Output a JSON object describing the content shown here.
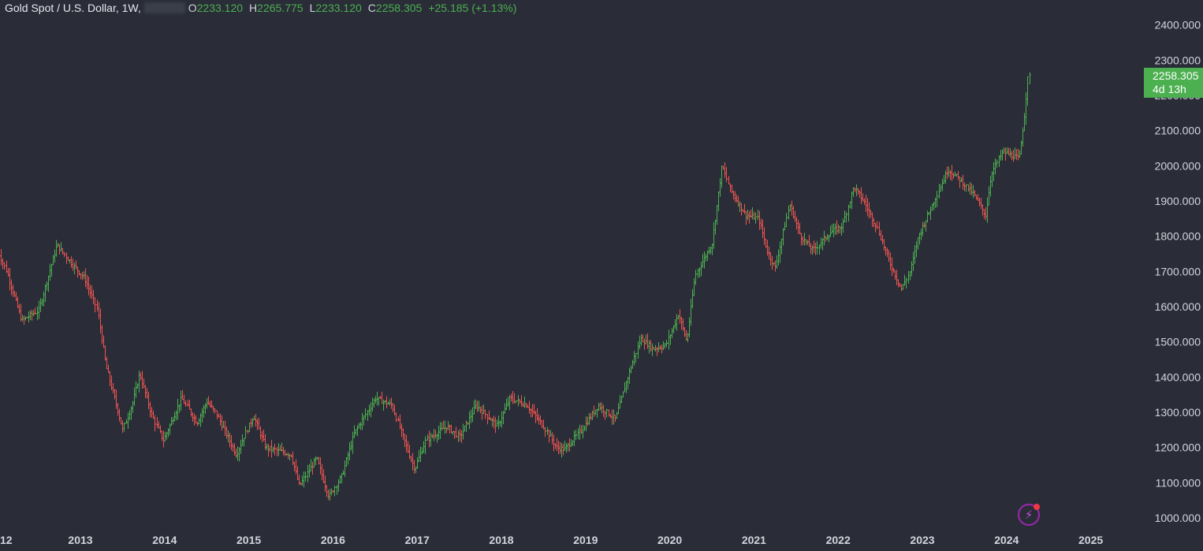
{
  "legend": {
    "symbol": "Gold Spot / U.S. Dollar, 1W,",
    "open_label": "O",
    "open": "2233.120",
    "high_label": "H",
    "high": "2265.775",
    "low_label": "L",
    "low": "2233.120",
    "close_label": "C",
    "close": "2258.305",
    "change": "+25.185 (+1.13%)"
  },
  "price_badge": {
    "price": "2258.305",
    "countdown": "4d 13h"
  },
  "toolbar": {
    "bolt_icon": "lightning-bolt-icon"
  },
  "colors": {
    "up": "#4caf50",
    "down": "#ef5350",
    "background": "#2a2d38",
    "text": "#d1d4dc"
  },
  "chart_data": {
    "type": "bar",
    "subtype": "ohlc-weekly",
    "title": "Gold Spot / U.S. Dollar, 1W,",
    "y_axis": {
      "side": "right",
      "range": [
        980,
        2440
      ],
      "ticks": [
        1000,
        1100,
        1200,
        1300,
        1400,
        1500,
        1600,
        1700,
        1800,
        1900,
        2000,
        2100,
        2200,
        2300,
        2400
      ],
      "tick_labels": [
        "1000.000",
        "1100.000",
        "1200.000",
        "1300.000",
        "1400.000",
        "1500.000",
        "1600.000",
        "1700.000",
        "1800.000",
        "1900.000",
        "2000.000",
        "2100.000",
        "2200.000",
        "2300.000",
        "2400.000"
      ]
    },
    "x_axis": {
      "range": [
        2012.0,
        2025.25
      ],
      "ticks": [
        2013,
        2014,
        2015,
        2016,
        2017,
        2018,
        2019,
        2020,
        2021,
        2022,
        2023,
        2024,
        2025
      ],
      "tick_labels": [
        "2013",
        "2014",
        "2015",
        "2016",
        "2017",
        "2018",
        "2019",
        "2020",
        "2021",
        "2022",
        "2023",
        "2024",
        "2025"
      ]
    },
    "price_path": [
      [
        2012.0,
        1770
      ],
      [
        2012.12,
        1700
      ],
      [
        2012.3,
        1560
      ],
      [
        2012.5,
        1590
      ],
      [
        2012.72,
        1775
      ],
      [
        2012.9,
        1720
      ],
      [
        2013.05,
        1680
      ],
      [
        2013.2,
        1590
      ],
      [
        2013.3,
        1430
      ],
      [
        2013.45,
        1300
      ],
      [
        2013.5,
        1250
      ],
      [
        2013.62,
        1330
      ],
      [
        2013.7,
        1410
      ],
      [
        2013.85,
        1290
      ],
      [
        2013.98,
        1220
      ],
      [
        2014.2,
        1340
      ],
      [
        2014.38,
        1270
      ],
      [
        2014.5,
        1330
      ],
      [
        2014.6,
        1300
      ],
      [
        2014.85,
        1180
      ],
      [
        2015.05,
        1290
      ],
      [
        2015.2,
        1200
      ],
      [
        2015.5,
        1180
      ],
      [
        2015.6,
        1090
      ],
      [
        2015.8,
        1170
      ],
      [
        2015.95,
        1060
      ],
      [
        2016.1,
        1120
      ],
      [
        2016.25,
        1240
      ],
      [
        2016.5,
        1340
      ],
      [
        2016.7,
        1320
      ],
      [
        2016.9,
        1180
      ],
      [
        2016.97,
        1140
      ],
      [
        2017.1,
        1220
      ],
      [
        2017.35,
        1260
      ],
      [
        2017.5,
        1230
      ],
      [
        2017.7,
        1320
      ],
      [
        2017.95,
        1260
      ],
      [
        2018.1,
        1340
      ],
      [
        2018.3,
        1320
      ],
      [
        2018.5,
        1260
      ],
      [
        2018.65,
        1200
      ],
      [
        2018.75,
        1195
      ],
      [
        2018.95,
        1250
      ],
      [
        2019.15,
        1320
      ],
      [
        2019.35,
        1280
      ],
      [
        2019.5,
        1400
      ],
      [
        2019.65,
        1510
      ],
      [
        2019.8,
        1480
      ],
      [
        2019.95,
        1490
      ],
      [
        2020.1,
        1580
      ],
      [
        2020.2,
        1500
      ],
      [
        2020.3,
        1690
      ],
      [
        2020.5,
        1780
      ],
      [
        2020.62,
        2000
      ],
      [
        2020.72,
        1930
      ],
      [
        2020.9,
        1860
      ],
      [
        2021.05,
        1850
      ],
      [
        2021.15,
        1760
      ],
      [
        2021.25,
        1710
      ],
      [
        2021.42,
        1890
      ],
      [
        2021.55,
        1800
      ],
      [
        2021.7,
        1760
      ],
      [
        2021.9,
        1810
      ],
      [
        2022.05,
        1830
      ],
      [
        2022.18,
        1940
      ],
      [
        2022.3,
        1900
      ],
      [
        2022.45,
        1830
      ],
      [
        2022.6,
        1730
      ],
      [
        2022.75,
        1650
      ],
      [
        2022.85,
        1700
      ],
      [
        2022.95,
        1800
      ],
      [
        2023.1,
        1880
      ],
      [
        2023.3,
        1990
      ],
      [
        2023.45,
        1960
      ],
      [
        2023.6,
        1920
      ],
      [
        2023.75,
        1860
      ],
      [
        2023.82,
        1980
      ],
      [
        2023.95,
        2040
      ],
      [
        2024.05,
        2030
      ],
      [
        2024.15,
        2020
      ],
      [
        2024.22,
        2160
      ],
      [
        2024.25,
        2258
      ]
    ],
    "last_bar": {
      "open": 2233.12,
      "high": 2265.775,
      "low": 2233.12,
      "close": 2258.305
    },
    "grid": false,
    "legend_position": "top-left"
  }
}
